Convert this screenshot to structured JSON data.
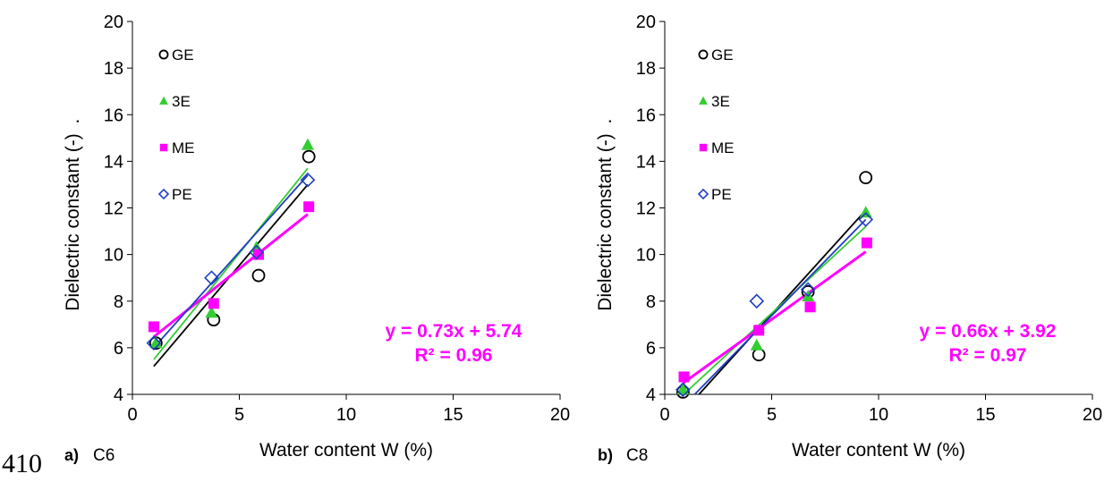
{
  "line_number": "410",
  "colors": {
    "GE": "#000000",
    "3E": "#33cc33",
    "ME": "#ff00ff",
    "PE": "#1f3fbf",
    "equation": "#ff00ff"
  },
  "chart_data": [
    {
      "type": "scatter",
      "panel_letter": "a)",
      "panel_name": "C6",
      "xlabel": "Water content W (%)",
      "ylabel": "Dielectric constant (-)",
      "ylabel_suffix": ".",
      "xlim": [
        0,
        20
      ],
      "ylim": [
        4,
        20
      ],
      "xticks": [
        "0",
        "5",
        "10",
        "15",
        "20"
      ],
      "yticks": [
        "4",
        "6",
        "8",
        "10",
        "12",
        "14",
        "16",
        "18",
        "20"
      ],
      "grid": false,
      "legend_position": "top-left",
      "series": [
        {
          "name": "GE",
          "marker": "circle-open",
          "color": "#000000",
          "points": [
            [
              1.1,
              6.2
            ],
            [
              3.8,
              7.2
            ],
            [
              5.9,
              9.1
            ],
            [
              8.25,
              14.2
            ]
          ],
          "fit": [
            [
              1.0,
              5.2
            ],
            [
              8.2,
              13.0
            ]
          ]
        },
        {
          "name": "3E",
          "marker": "triangle",
          "color": "#33cc33",
          "points": [
            [
              1.1,
              6.2
            ],
            [
              3.7,
              7.5
            ],
            [
              5.8,
              10.3
            ],
            [
              8.2,
              14.7
            ]
          ],
          "fit": [
            [
              1.0,
              5.5
            ],
            [
              8.2,
              13.7
            ]
          ]
        },
        {
          "name": "ME",
          "marker": "square",
          "color": "#ff00ff",
          "points": [
            [
              1.0,
              6.9
            ],
            [
              3.8,
              7.9
            ],
            [
              5.9,
              10.0
            ],
            [
              8.25,
              12.05
            ]
          ],
          "fit": [
            [
              1.0,
              6.47
            ],
            [
              8.2,
              11.73
            ]
          ]
        },
        {
          "name": "PE",
          "marker": "diamond-open",
          "color": "#1f3fbf",
          "points": [
            [
              1.0,
              6.2
            ],
            [
              3.7,
              9.0
            ],
            [
              5.8,
              10.1
            ],
            [
              8.2,
              13.2
            ]
          ],
          "fit": [
            [
              1.0,
              6.0
            ],
            [
              8.2,
              13.4
            ]
          ]
        }
      ],
      "equation": "y = 0.73x + 5.74",
      "r2": "R² = 0.96"
    },
    {
      "type": "scatter",
      "panel_letter": "b)",
      "panel_name": "C8",
      "xlabel": "Water content W (%)",
      "ylabel": "Dielectric constant (-)",
      "ylabel_suffix": ".",
      "xlim": [
        0,
        20
      ],
      "ylim": [
        4,
        20
      ],
      "xticks": [
        "0",
        "5",
        "10",
        "15",
        "20"
      ],
      "yticks": [
        "4",
        "6",
        "8",
        "10",
        "12",
        "14",
        "16",
        "18",
        "20"
      ],
      "grid": false,
      "legend_position": "top-left",
      "series": [
        {
          "name": "GE",
          "marker": "circle-open",
          "color": "#000000",
          "points": [
            [
              0.85,
              4.1
            ],
            [
              4.4,
              5.7
            ],
            [
              6.7,
              8.4
            ],
            [
              9.4,
              13.3
            ]
          ],
          "fit": [
            [
              1.6,
              4.0
            ],
            [
              9.4,
              11.9
            ]
          ]
        },
        {
          "name": "3E",
          "marker": "triangle",
          "color": "#33cc33",
          "points": [
            [
              0.85,
              4.2
            ],
            [
              4.3,
              6.1
            ],
            [
              6.7,
              8.2
            ],
            [
              9.4,
              11.8
            ]
          ],
          "fit": [
            [
              1.0,
              4.1
            ],
            [
              9.4,
              11.2
            ]
          ]
        },
        {
          "name": "ME",
          "marker": "square",
          "color": "#ff00ff",
          "points": [
            [
              0.9,
              4.75
            ],
            [
              4.4,
              6.75
            ],
            [
              6.8,
              7.75
            ],
            [
              9.45,
              10.5
            ]
          ],
          "fit": [
            [
              0.85,
              4.48
            ],
            [
              9.4,
              10.12
            ]
          ]
        },
        {
          "name": "PE",
          "marker": "diamond-open",
          "color": "#1f3fbf",
          "points": [
            [
              0.85,
              4.2
            ],
            [
              4.3,
              8.0
            ],
            [
              6.7,
              8.5
            ],
            [
              9.4,
              11.5
            ]
          ],
          "fit": [
            [
              1.4,
              4.0
            ],
            [
              9.4,
              11.5
            ]
          ]
        }
      ],
      "equation": "y = 0.66x + 3.92",
      "r2": "R² = 0.97"
    }
  ]
}
